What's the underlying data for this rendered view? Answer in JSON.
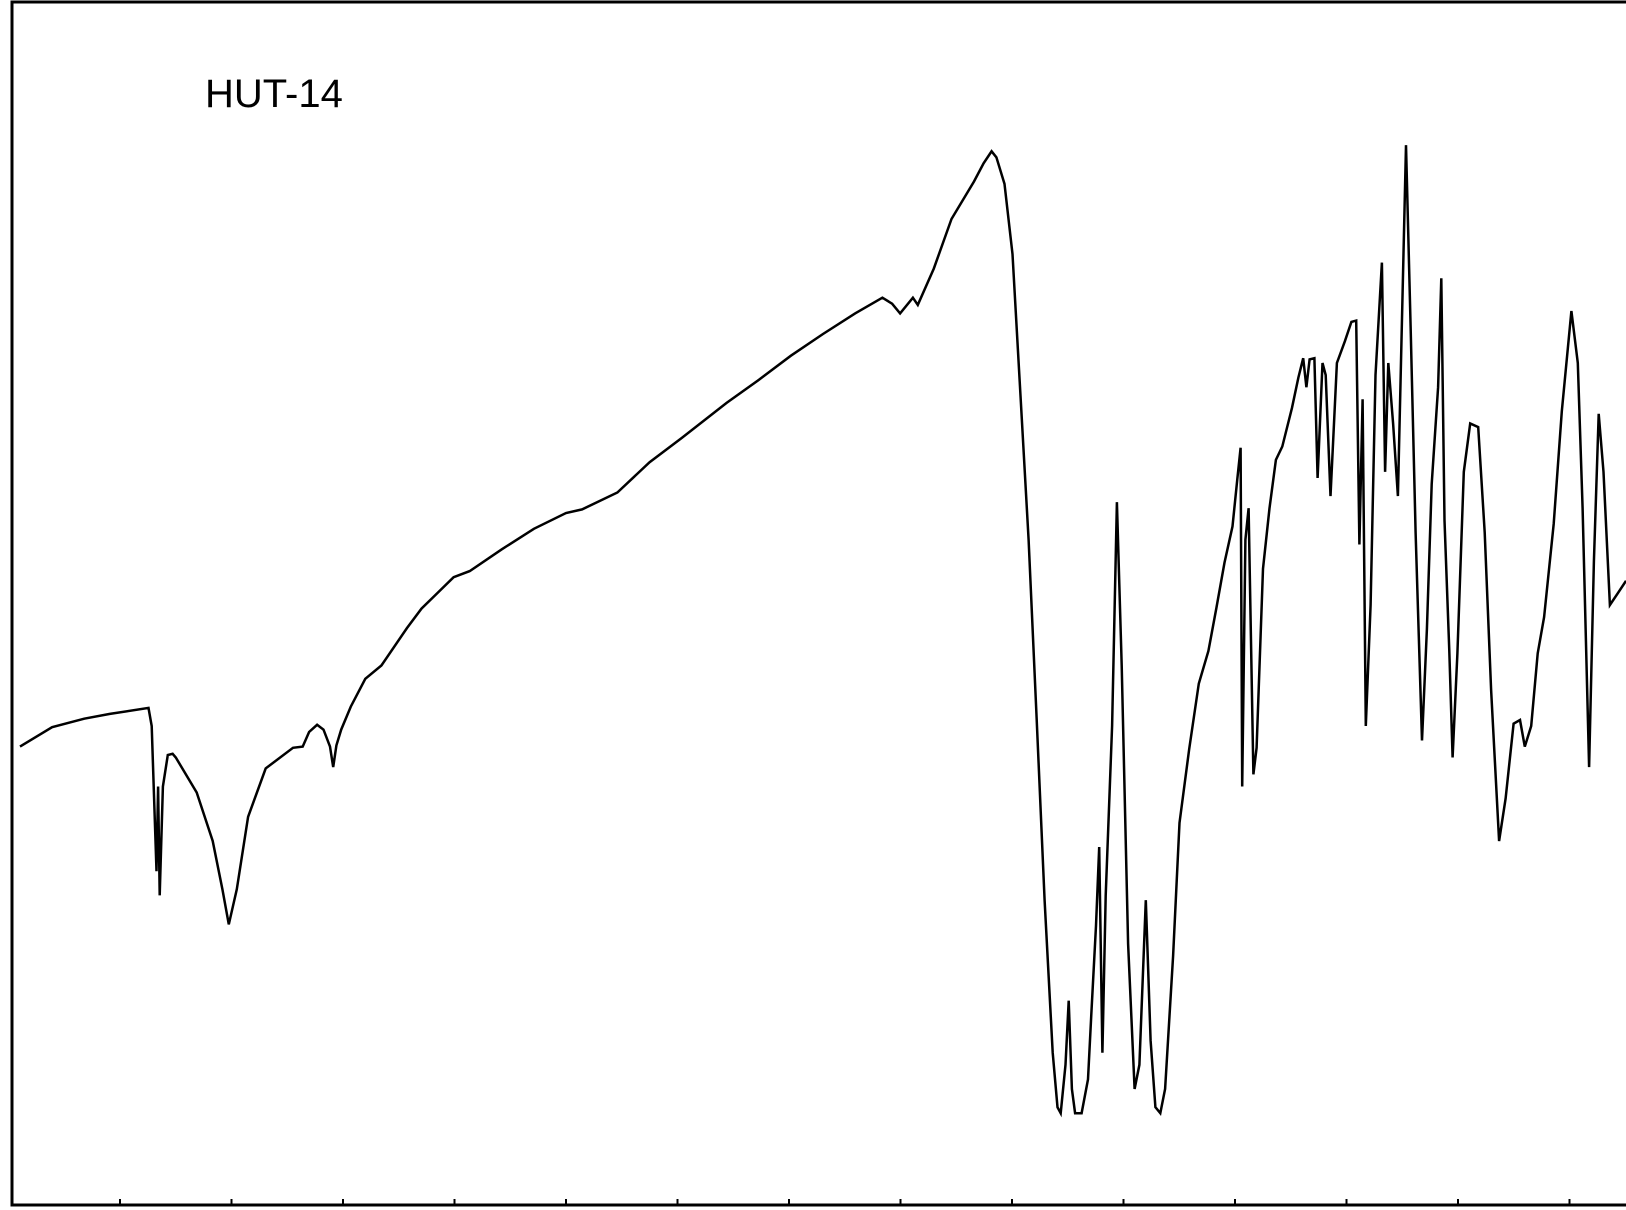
{
  "chart_data": {
    "type": "line",
    "title": "",
    "annotation": "HUT-14",
    "xlabel": "",
    "ylabel": "",
    "grid": false,
    "legend": "none",
    "tick_labels_shown": false,
    "x_tick_count": 14,
    "xlim": [
      0,
      1000
    ],
    "ylim": [
      0,
      100
    ],
    "line_color": "#000000",
    "series": [
      {
        "values_xy": [
          [
            0,
            38.3
          ],
          [
            20,
            39.9
          ],
          [
            40,
            40.6
          ],
          [
            56,
            41.0
          ],
          [
            80,
            41.5
          ],
          [
            82,
            40.0
          ],
          [
            85,
            28.0
          ],
          [
            86,
            35.0
          ],
          [
            87,
            26.0
          ],
          [
            89,
            35.0
          ],
          [
            92,
            37.6
          ],
          [
            95,
            37.7
          ],
          [
            97,
            37.4
          ],
          [
            110,
            34.5
          ],
          [
            120,
            30.5
          ],
          [
            126,
            26.5
          ],
          [
            130,
            23.6
          ],
          [
            135,
            26.5
          ],
          [
            142,
            32.5
          ],
          [
            153,
            36.5
          ],
          [
            170,
            38.2
          ],
          [
            176,
            38.3
          ],
          [
            180,
            39.5
          ],
          [
            185,
            40.1
          ],
          [
            189,
            39.7
          ],
          [
            193,
            38.3
          ],
          [
            195,
            36.6
          ],
          [
            197,
            38.4
          ],
          [
            200,
            39.7
          ],
          [
            206,
            41.6
          ],
          [
            215,
            43.9
          ],
          [
            225,
            45.0
          ],
          [
            241,
            48.1
          ],
          [
            250,
            49.7
          ],
          [
            260,
            51.0
          ],
          [
            270,
            52.3
          ],
          [
            280,
            52.8
          ],
          [
            300,
            54.6
          ],
          [
            320,
            56.3
          ],
          [
            340,
            57.6
          ],
          [
            350,
            57.9
          ],
          [
            372,
            59.3
          ],
          [
            392,
            61.8
          ],
          [
            412,
            63.8
          ],
          [
            440,
            66.7
          ],
          [
            460,
            68.6
          ],
          [
            480,
            70.6
          ],
          [
            500,
            72.4
          ],
          [
            520,
            74.1
          ],
          [
            537,
            75.4
          ],
          [
            543,
            74.9
          ],
          [
            548,
            74.1
          ],
          [
            556,
            75.4
          ],
          [
            559,
            74.8
          ],
          [
            569,
            77.8
          ],
          [
            580,
            81.9
          ],
          [
            594,
            85.0
          ],
          [
            600,
            86.5
          ],
          [
            605,
            87.5
          ],
          [
            608,
            87.0
          ],
          [
            613,
            84.8
          ],
          [
            618,
            79.0
          ],
          [
            623,
            67.3
          ],
          [
            628,
            55.4
          ],
          [
            633,
            40.7
          ],
          [
            638,
            25.6
          ],
          [
            643,
            13.0
          ],
          [
            646,
            8.5
          ],
          [
            648,
            8.0
          ],
          [
            651,
            12.0
          ],
          [
            653,
            17.3
          ],
          [
            655,
            10.0
          ],
          [
            657,
            8.0
          ],
          [
            661,
            8.0
          ],
          [
            665,
            10.8
          ],
          [
            667,
            16.0
          ],
          [
            670,
            23.5
          ],
          [
            672,
            30.0
          ],
          [
            674,
            13.0
          ],
          [
            676,
            26.0
          ],
          [
            680,
            40.0
          ],
          [
            683,
            58.5
          ],
          [
            686,
            45.0
          ],
          [
            690,
            22.0
          ],
          [
            694,
            10.0
          ],
          [
            697,
            12.0
          ],
          [
            701,
            25.6
          ],
          [
            704,
            14.0
          ],
          [
            707,
            8.5
          ],
          [
            710,
            8.0
          ],
          [
            713,
            10.0
          ],
          [
            718,
            21.0
          ],
          [
            722,
            32.0
          ],
          [
            728,
            38.1
          ],
          [
            734,
            43.5
          ],
          [
            740,
            46.2
          ],
          [
            745,
            49.8
          ],
          [
            750,
            53.5
          ],
          [
            755,
            56.5
          ],
          [
            758,
            60.4
          ],
          [
            760,
            63.0
          ],
          [
            761,
            35.0
          ],
          [
            763,
            55.4
          ],
          [
            765,
            58.0
          ],
          [
            768,
            36.0
          ],
          [
            770,
            38.2
          ],
          [
            774,
            53.0
          ],
          [
            778,
            58.0
          ],
          [
            782,
            62.0
          ],
          [
            786,
            63.1
          ],
          [
            792,
            66.3
          ],
          [
            796,
            68.8
          ],
          [
            799,
            70.4
          ],
          [
            801,
            68.0
          ],
          [
            803,
            70.3
          ],
          [
            806,
            70.4
          ],
          [
            808,
            60.5
          ],
          [
            811,
            70.0
          ],
          [
            813,
            69.0
          ],
          [
            816,
            59.0
          ],
          [
            820,
            70.0
          ],
          [
            825,
            71.8
          ],
          [
            829,
            73.4
          ],
          [
            832,
            73.5
          ],
          [
            834,
            55.0
          ],
          [
            836,
            67.0
          ],
          [
            838,
            40.0
          ],
          [
            841,
            50.0
          ],
          [
            844,
            69.0
          ],
          [
            848,
            78.3
          ],
          [
            850,
            61.0
          ],
          [
            852,
            70.0
          ],
          [
            855,
            65.0
          ],
          [
            858,
            59.0
          ],
          [
            863,
            88.0
          ],
          [
            866,
            72.4
          ],
          [
            869,
            56.0
          ],
          [
            873,
            38.8
          ],
          [
            876,
            48.0
          ],
          [
            879,
            60.0
          ],
          [
            883,
            68.0
          ],
          [
            885,
            77.0
          ],
          [
            887,
            57.0
          ],
          [
            890,
            46.2
          ],
          [
            892,
            37.4
          ],
          [
            895,
            46.0
          ],
          [
            899,
            61.0
          ],
          [
            903,
            65.0
          ],
          [
            908,
            64.7
          ],
          [
            912,
            56.0
          ],
          [
            916,
            43.0
          ],
          [
            921,
            30.5
          ],
          [
            925,
            34.0
          ],
          [
            930,
            40.2
          ],
          [
            934,
            40.5
          ],
          [
            937,
            38.3
          ],
          [
            941,
            40.0
          ],
          [
            945,
            46.0
          ],
          [
            949,
            49.0
          ],
          [
            955,
            56.7
          ],
          [
            960,
            66.0
          ],
          [
            966,
            74.3
          ],
          [
            970,
            70.0
          ],
          [
            973,
            58.0
          ],
          [
            977,
            36.6
          ],
          [
            980,
            53.6
          ],
          [
            983,
            65.8
          ],
          [
            986,
            61.0
          ],
          [
            990,
            50.0
          ],
          [
            995,
            51.0
          ],
          [
            1000,
            52.0
          ]
        ]
      }
    ]
  }
}
